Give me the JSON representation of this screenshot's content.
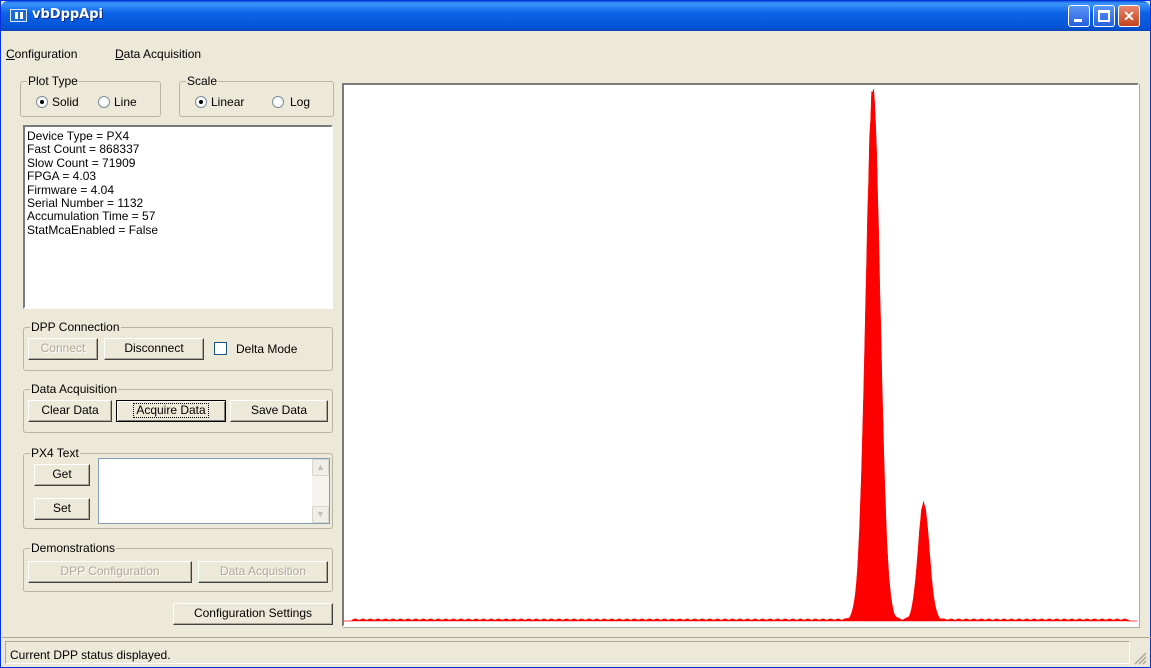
{
  "window": {
    "title": "vbDppApi"
  },
  "menu": [
    {
      "mnemonic": "C",
      "rest": "onfiguration"
    },
    {
      "mnemonic": "D",
      "rest": "ata Acquisition"
    }
  ],
  "plot_type": {
    "title": "Plot Type",
    "options": [
      "Solid",
      "Line"
    ],
    "selected": "Solid"
  },
  "scale": {
    "title": "Scale",
    "options": [
      "Linear",
      "Log"
    ],
    "selected": "Linear"
  },
  "info_lines": [
    "Device Type = PX4",
    "Fast Count = 868337",
    "Slow Count = 71909",
    "FPGA = 4.03",
    "Firmware = 4.04",
    "Serial Number = 1132",
    "Accumulation Time = 57",
    "StatMcaEnabled = False"
  ],
  "dpp_connection": {
    "title": "DPP Connection",
    "connect": "Connect",
    "disconnect": "Disconnect",
    "delta_mode": "Delta Mode",
    "delta_mode_checked": false
  },
  "data_acquisition": {
    "title": "Data Acquisition",
    "clear": "Clear Data",
    "acquire": "Acquire Data",
    "save": "Save Data"
  },
  "px4_text": {
    "title": "PX4 Text",
    "get": "Get",
    "set": "Set",
    "value": ""
  },
  "demonstrations": {
    "title": "Demonstrations",
    "dpp_configuration": "DPP Configuration",
    "data_acquisition": "Data Acquisition"
  },
  "configuration_settings": "Configuration Settings",
  "status": "Current DPP status displayed.",
  "chart_data": {
    "type": "area",
    "color": "#ff0000",
    "xlim": [
      0,
      1
    ],
    "ylim": [
      0,
      1
    ],
    "peaks": [
      {
        "center": 0.667,
        "height": 1.0,
        "width": 0.009
      },
      {
        "center": 0.731,
        "height": 0.22,
        "width": 0.007
      }
    ],
    "baseline": 0.004
  }
}
